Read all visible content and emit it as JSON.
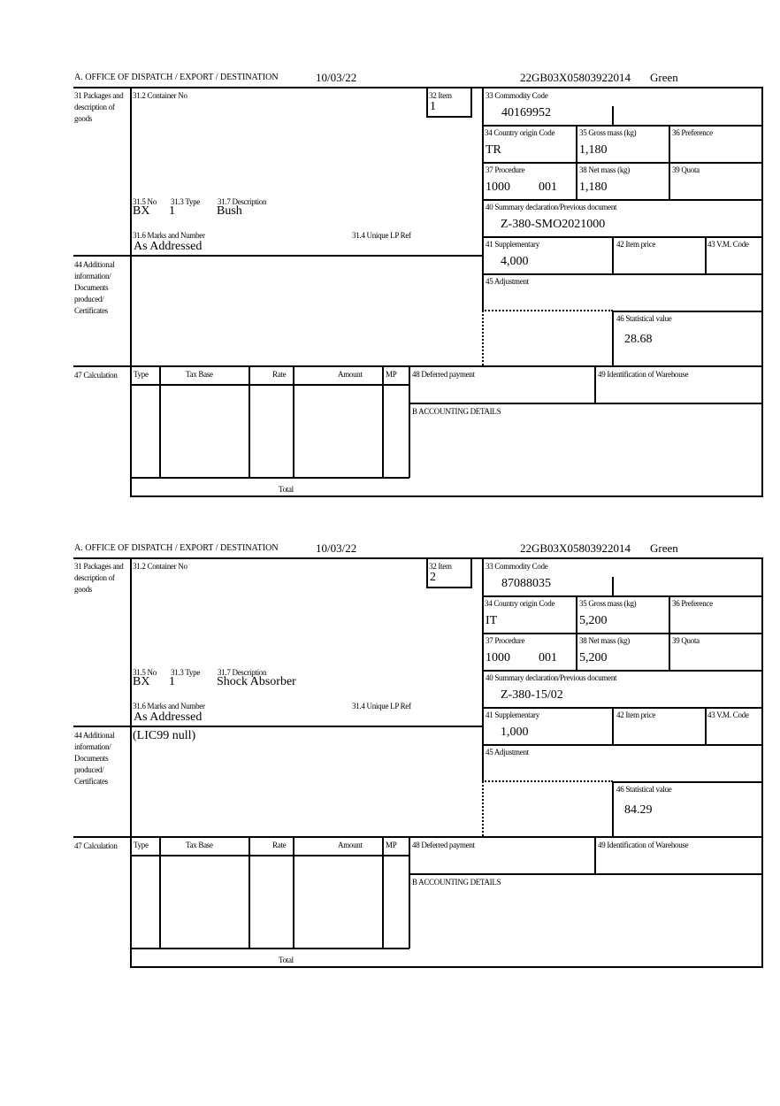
{
  "labels": {
    "office": "A.  OFFICE OF DISPATCH / EXPORT / DESTINATION",
    "packages": "31 Packages and description of goods",
    "container": "31.2 Container No",
    "item": "32 Item",
    "no": "31.5 No",
    "type": "31.3 Type",
    "description": "31.7 Description",
    "marks": "31.6 Marks and Number",
    "unique_ref": "31.4 Unique LP Ref",
    "commodity": "33 Commodity Code",
    "country": "34 Country origin Code",
    "gross": "35 Gross mass (kg)",
    "preference": "36 Preference",
    "procedure": "37 Procedure",
    "net": "38 Net mass (kg)",
    "quota": "39 Quota",
    "summary": "40 Summary declaration/Previous document",
    "supplementary": "41 Supplementary",
    "item_price": "42 Item price",
    "vm_code": "43 V.M. Code",
    "additional": "44 Additional information/ Documents produced/ Certificates",
    "adjustment": "45 Adjustment",
    "statistical": "46 Statistical value",
    "calculation": "47 Calculation",
    "calc_type": "Type",
    "tax_base": "Tax Base",
    "rate": "Rate",
    "amount": "Amount",
    "mp": "MP",
    "deferred": "48 Deferred payment",
    "warehouse": "49 Identification of Warehouse",
    "accounting": "B ACCOUNTING DETAILS",
    "total": "Total"
  },
  "forms": [
    {
      "date": "10/03/22",
      "reference": "22GB03X05803922014",
      "route": "Green",
      "item": "1",
      "no": "BX",
      "type": "1",
      "description": "Bush",
      "marks": "As Addressed",
      "commodity": "40169952",
      "country": "TR",
      "gross": "1,180",
      "procedure": "1000",
      "procedure_add": "001",
      "net": "1,180",
      "summary": "Z-380-SMO2021000",
      "supplementary": "4,000",
      "statistical": "28.68",
      "additional": ""
    },
    {
      "date": "10/03/22",
      "reference": "22GB03X05803922014",
      "route": "Green",
      "item": "2",
      "no": "BX",
      "type": "1",
      "description": "Shock Absorber",
      "marks": "As Addressed",
      "commodity": "87088035",
      "country": "IT",
      "gross": "5,200",
      "procedure": "1000",
      "procedure_add": "001",
      "net": "5,200",
      "summary": "Z-380-15/02",
      "supplementary": "1,000",
      "statistical": "84.29",
      "additional": "(LIC99 null)"
    }
  ]
}
